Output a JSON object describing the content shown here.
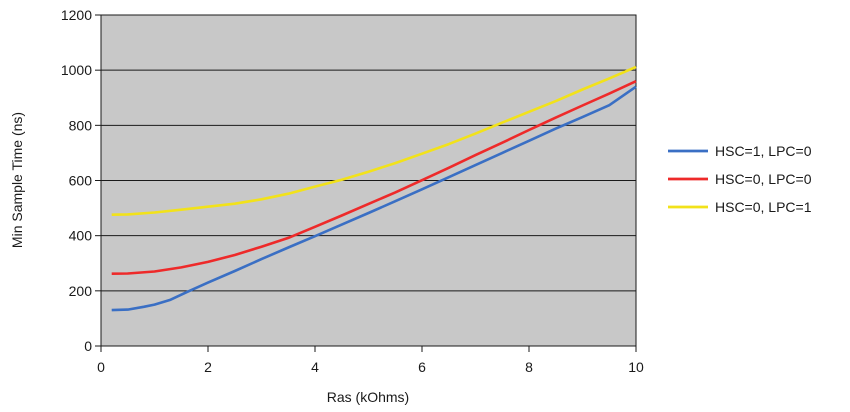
{
  "chart_data": {
    "type": "line",
    "xlabel": "Ras (kOhms)",
    "ylabel": "Min Sample Time (ns)",
    "xlim": [
      0,
      10
    ],
    "ylim": [
      0,
      1200
    ],
    "xticks": [
      0,
      2,
      4,
      6,
      8,
      10
    ],
    "yticks": [
      0,
      200,
      400,
      600,
      800,
      1000,
      1200
    ],
    "grid": "horizontal",
    "legend_position": "right",
    "plot_background": "#c8c8c8",
    "series": [
      {
        "name": "HSC=1, LPC=0",
        "color": "#3a6fc4",
        "points": [
          [
            0.2,
            130
          ],
          [
            0.5,
            132
          ],
          [
            0.8,
            142
          ],
          [
            1.0,
            150
          ],
          [
            1.3,
            168
          ],
          [
            1.6,
            195
          ],
          [
            2,
            230
          ],
          [
            2.5,
            272
          ],
          [
            3,
            315
          ],
          [
            3.5,
            357
          ],
          [
            4,
            398
          ],
          [
            4.5,
            440
          ],
          [
            5,
            482
          ],
          [
            5.5,
            525
          ],
          [
            6,
            568
          ],
          [
            6.5,
            612
          ],
          [
            7,
            656
          ],
          [
            7.5,
            700
          ],
          [
            8,
            744
          ],
          [
            8.5,
            788
          ],
          [
            9,
            830
          ],
          [
            9.5,
            873
          ],
          [
            10,
            940
          ]
        ]
      },
      {
        "name": "HSC=0, LPC=0",
        "color": "#ee2a2a",
        "points": [
          [
            0.2,
            262
          ],
          [
            0.5,
            263
          ],
          [
            1.0,
            270
          ],
          [
            1.5,
            285
          ],
          [
            2,
            305
          ],
          [
            2.5,
            330
          ],
          [
            3,
            360
          ],
          [
            3.5,
            392
          ],
          [
            4,
            432
          ],
          [
            4.5,
            473
          ],
          [
            5,
            515
          ],
          [
            5.5,
            557
          ],
          [
            6,
            601
          ],
          [
            6.5,
            646
          ],
          [
            7,
            692
          ],
          [
            7.5,
            737
          ],
          [
            8,
            783
          ],
          [
            8.5,
            828
          ],
          [
            9,
            872
          ],
          [
            9.5,
            915
          ],
          [
            10,
            960
          ]
        ]
      },
      {
        "name": "HSC=0, LPC=1",
        "color": "#f2e21a",
        "points": [
          [
            0.2,
            476
          ],
          [
            0.5,
            477
          ],
          [
            1.0,
            484
          ],
          [
            1.5,
            494
          ],
          [
            2,
            505
          ],
          [
            2.5,
            516
          ],
          [
            3,
            532
          ],
          [
            3.5,
            552
          ],
          [
            4,
            578
          ],
          [
            4.5,
            603
          ],
          [
            5,
            632
          ],
          [
            5.5,
            663
          ],
          [
            6,
            697
          ],
          [
            6.5,
            732
          ],
          [
            7,
            770
          ],
          [
            7.5,
            810
          ],
          [
            8,
            849
          ],
          [
            8.5,
            888
          ],
          [
            9,
            930
          ],
          [
            9.5,
            970
          ],
          [
            10,
            1012
          ]
        ]
      }
    ]
  }
}
